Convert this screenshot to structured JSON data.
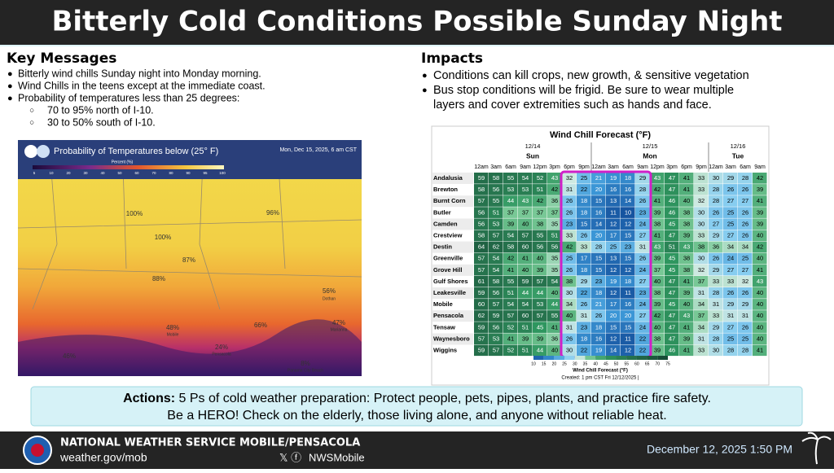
{
  "header": {
    "title": "Bitterly Cold Conditions Possible Sunday Night"
  },
  "key_messages": {
    "title": "Key Messages",
    "items": [
      "Bitterly wind chills Sunday night into Monday morning.",
      "Wind Chills in the teens except at the immediate coast.",
      "Probability of temperatures less than 25 degrees:"
    ],
    "subitems": [
      "70 to 95% north of I-10.",
      "30 to 50% south of I-10."
    ]
  },
  "impacts": {
    "title": "Impacts",
    "items": [
      "Conditions can kill crops, new growth, & sensitive vegetation",
      "Bus stop conditions will be frigid. Be sure to wear multiple",
      "layers and cover extremities such as hands and face."
    ]
  },
  "map": {
    "title": "Probability of Temperatures below (25° F)",
    "date": "Mon, Dec 15, 2025, 6 am CST",
    "legend_title": "Percent (%)",
    "legend_ticks": [
      "5",
      "10",
      "20",
      "30",
      "40",
      "50",
      "60",
      "70",
      "80",
      "90",
      "95",
      "100"
    ],
    "labels": [
      "100%",
      "100%",
      "87%",
      "96%",
      "88%",
      "56%",
      "Dothan",
      "48%",
      "Mobile",
      "24%",
      "Pensacola",
      "66%",
      "47%",
      "Marianna",
      "8%",
      "Panama City Beach",
      "46%"
    ]
  },
  "wind_chill_table": {
    "title": "Wind Chill Forecast (°F)",
    "dates": [
      {
        "date": "12/14",
        "day": "Sun"
      },
      {
        "date": "12/15",
        "day": "Mon"
      },
      {
        "date": "12/16",
        "day": "Tue"
      }
    ],
    "times": [
      "12am",
      "3am",
      "6am",
      "9am",
      "12pm",
      "3pm",
      "6pm",
      "9pm",
      "12am",
      "3am",
      "6am",
      "9am",
      "12pm",
      "3pm",
      "6pm",
      "9pm",
      "12am",
      "3am",
      "6am",
      "9am"
    ],
    "rows": [
      {
        "name": "Andalusia",
        "values": [
          59,
          58,
          55,
          54,
          52,
          43,
          32,
          25,
          21,
          19,
          18,
          29,
          43,
          47,
          41,
          33,
          30,
          29,
          28,
          42
        ]
      },
      {
        "name": "Brewton",
        "values": [
          58,
          56,
          53,
          53,
          51,
          42,
          31,
          22,
          20,
          16,
          16,
          28,
          42,
          47,
          41,
          33,
          28,
          26,
          26,
          39
        ]
      },
      {
        "name": "Burnt Corn",
        "values": [
          57,
          55,
          44,
          43,
          42,
          36,
          26,
          18,
          15,
          13,
          14,
          26,
          41,
          46,
          40,
          32,
          28,
          27,
          27,
          41
        ]
      },
      {
        "name": "Butler",
        "values": [
          56,
          51,
          37,
          37,
          37,
          37,
          26,
          18,
          16,
          11,
          10,
          23,
          39,
          46,
          38,
          30,
          26,
          25,
          26,
          39
        ]
      },
      {
        "name": "Camden",
        "values": [
          56,
          53,
          39,
          40,
          38,
          35,
          23,
          15,
          14,
          12,
          12,
          24,
          38,
          45,
          38,
          30,
          27,
          25,
          26,
          39
        ]
      },
      {
        "name": "Crestview",
        "values": [
          58,
          57,
          54,
          57,
          55,
          51,
          33,
          26,
          20,
          17,
          15,
          27,
          41,
          47,
          39,
          33,
          29,
          27,
          26,
          40
        ]
      },
      {
        "name": "Destin",
        "values": [
          64,
          62,
          58,
          60,
          56,
          56,
          42,
          33,
          28,
          25,
          23,
          31,
          43,
          51,
          43,
          38,
          36,
          34,
          34,
          42
        ]
      },
      {
        "name": "Greenville",
        "values": [
          57,
          54,
          42,
          41,
          40,
          35,
          25,
          17,
          15,
          13,
          15,
          26,
          39,
          45,
          38,
          30,
          26,
          24,
          25,
          40
        ]
      },
      {
        "name": "Grove Hill",
        "values": [
          57,
          54,
          41,
          40,
          39,
          35,
          26,
          18,
          15,
          12,
          12,
          24,
          37,
          45,
          38,
          32,
          29,
          27,
          27,
          41
        ]
      },
      {
        "name": "Gulf Shores",
        "values": [
          61,
          58,
          55,
          59,
          57,
          54,
          38,
          29,
          23,
          19,
          18,
          27,
          40,
          47,
          41,
          37,
          33,
          33,
          32,
          43
        ]
      },
      {
        "name": "Leakesville",
        "values": [
          59,
          56,
          51,
          44,
          44,
          40,
          30,
          22,
          18,
          12,
          11,
          23,
          38,
          47,
          39,
          31,
          28,
          26,
          26,
          40
        ]
      },
      {
        "name": "Mobile",
        "values": [
          60,
          57,
          54,
          54,
          53,
          44,
          34,
          26,
          21,
          17,
          16,
          24,
          39,
          45,
          40,
          34,
          31,
          29,
          29,
          40
        ]
      },
      {
        "name": "Pensacola",
        "values": [
          62,
          59,
          57,
          60,
          57,
          55,
          40,
          31,
          26,
          20,
          20,
          27,
          42,
          47,
          43,
          37,
          33,
          31,
          31,
          40
        ]
      },
      {
        "name": "Tensaw",
        "values": [
          59,
          56,
          52,
          51,
          45,
          41,
          31,
          23,
          18,
          15,
          15,
          24,
          40,
          47,
          41,
          34,
          29,
          27,
          26,
          40
        ]
      },
      {
        "name": "Waynesboro",
        "values": [
          57,
          53,
          41,
          39,
          39,
          36,
          26,
          18,
          16,
          12,
          11,
          22,
          38,
          47,
          39,
          31,
          28,
          25,
          25,
          40
        ]
      },
      {
        "name": "Wiggins",
        "values": [
          59,
          57,
          52,
          51,
          44,
          40,
          30,
          22,
          19,
          14,
          12,
          22,
          39,
          46,
          41,
          33,
          30,
          28,
          28,
          41
        ]
      }
    ],
    "colorbar_ticks": [
      10,
      15,
      20,
      25,
      30,
      35,
      40,
      45,
      50,
      55,
      60,
      65,
      70,
      75
    ],
    "colorbar_title": "Wind Chill Forecast (°F)",
    "created": "Created: 1 pm CST Fri 12/12/2025 |"
  },
  "actions": {
    "label": "Actions:",
    "line1": "5 Ps of cold weather preparation: Protect people, pets, pipes, plants, and practice fire safety.",
    "line2": "Be a HERO! Check on the elderly, those living alone, and anyone without reliable heat."
  },
  "footer": {
    "office": "NATIONAL WEATHER SERVICE MOBILE/PENSACOLA",
    "url": "weather.gov/mob",
    "social": "NWSMobile",
    "date": "December 12, 2025  1:50 PM"
  }
}
